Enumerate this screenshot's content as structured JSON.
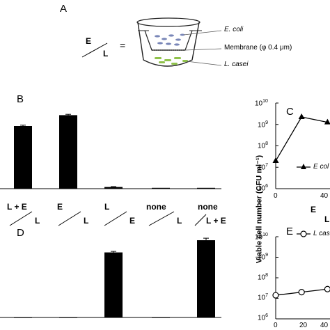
{
  "panel_a": {
    "letter": "A",
    "equation": {
      "top": "E",
      "bottom": "L",
      "equals": "="
    },
    "labels": {
      "ecoli": "E. coli",
      "membrane": "Membrane (φ 0.4 μm)",
      "lcasei": "L. casei"
    }
  },
  "panel_b": {
    "letter": "B"
  },
  "panel_c": {
    "letter": "C"
  },
  "panel_d": {
    "letter": "D"
  },
  "panel_e": {
    "letter": "E"
  },
  "condition_labels": [
    {
      "top": "L + E",
      "bottom": "L"
    },
    {
      "top": "E",
      "bottom": "L"
    },
    {
      "top": "L",
      "bottom": "E"
    },
    {
      "top": "none",
      "bottom": "L"
    },
    {
      "top": "none",
      "bottom": "L + E"
    }
  ],
  "right_axis": {
    "ylabel": "Viable cell number (CFU ml⁻¹)",
    "c_ticks": [
      {
        "base": "10",
        "exp": "10"
      },
      {
        "base": "10",
        "exp": "9"
      },
      {
        "base": "10",
        "exp": "8"
      },
      {
        "base": "10",
        "exp": "7"
      },
      {
        "base": "10",
        "exp": "6"
      }
    ],
    "e_ticks": [
      {
        "base": "10",
        "exp": "10"
      },
      {
        "base": "10",
        "exp": "9"
      },
      {
        "base": "10",
        "exp": "8"
      },
      {
        "base": "10",
        "exp": "7"
      },
      {
        "base": "10",
        "exp": "6"
      }
    ],
    "c_xticks": [
      "0",
      "20",
      "40"
    ],
    "e_xticks": [
      "0",
      "20",
      "40"
    ],
    "c_legend": "E col",
    "e_legend": "L cas",
    "partial_labels": {
      "e_top": "E",
      "l_bottom": "L"
    }
  },
  "chart_data": [
    {
      "type": "bar",
      "panel": "B",
      "categories": [
        "L+E / L",
        "E / L",
        "L / E",
        "none / L",
        "none / L+E"
      ],
      "values": [
        0.75,
        0.88,
        0.02,
        0.01,
        0.01
      ],
      "errors": [
        0.01,
        0.01,
        0.005,
        0.003,
        0.003
      ],
      "ylim": [
        0,
        1
      ]
    },
    {
      "type": "bar",
      "panel": "D",
      "categories": [
        "L+E / L",
        "E / L",
        "L / E",
        "none / L",
        "none / L+E"
      ],
      "values": [
        0.0,
        0.0,
        0.64,
        0.0,
        0.76
      ],
      "errors": [
        0,
        0,
        0.01,
        0,
        0.02
      ],
      "ylim": [
        0,
        1
      ]
    },
    {
      "type": "line",
      "panel": "C",
      "series": [
        {
          "name": "E col",
          "x": [
            0,
            24,
            48
          ],
          "y": [
            7.3,
            9.35,
            9.1
          ]
        }
      ],
      "ylim": [
        6,
        10
      ],
      "y_scale": "log10",
      "marker": "triangle"
    },
    {
      "type": "line",
      "panel": "E",
      "series": [
        {
          "name": "L cas",
          "x": [
            0,
            24,
            48
          ],
          "y": [
            7.15,
            7.3,
            7.45
          ]
        }
      ],
      "ylim": [
        6,
        10
      ],
      "y_scale": "log10",
      "marker": "open-circle"
    }
  ]
}
